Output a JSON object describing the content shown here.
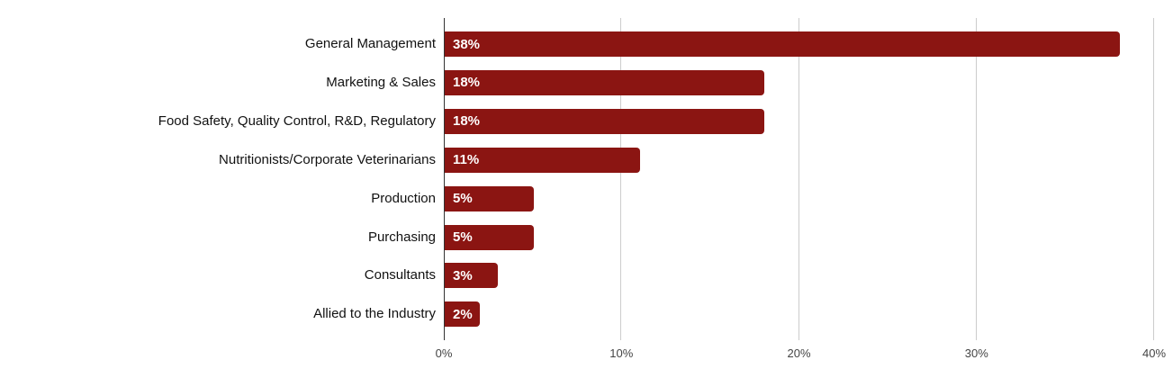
{
  "chart_data": {
    "type": "bar",
    "orientation": "horizontal",
    "title": "",
    "xlabel": "",
    "ylabel": "",
    "categories": [
      "General Management",
      "Marketing & Sales",
      "Food Safety, Quality Control, R&D, Regulatory",
      "Nutritionists/Corporate Veterinarians",
      "Production",
      "Purchasing",
      "Consultants",
      "Allied to the Industry"
    ],
    "values": [
      38,
      18,
      18,
      11,
      5,
      5,
      3,
      2
    ],
    "data_labels": [
      "38%",
      "18%",
      "18%",
      "11%",
      "5%",
      "5%",
      "3%",
      "2%"
    ],
    "xlim": [
      0,
      40
    ],
    "x_ticks": [
      "0%",
      "10%",
      "20%",
      "30%",
      "40%"
    ],
    "x_tick_values": [
      0,
      10,
      20,
      30,
      40
    ],
    "grid": "vertical-only",
    "legend": "none",
    "colors": {
      "bar": "#8B1512",
      "bar_label": "#FFFFFF",
      "axis_line": "#333333",
      "gridline": "#CCCCCC",
      "category_label": "#111111",
      "tick_label": "#444444",
      "background": "#FFFFFF"
    }
  }
}
